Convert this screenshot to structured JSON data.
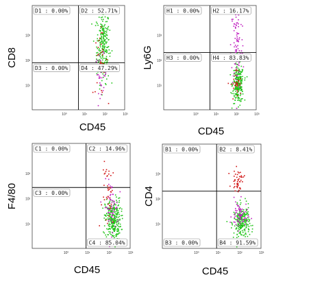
{
  "chart_data": [
    {
      "type": "scatter",
      "xlabel": "CD45",
      "ylabel": "CD8",
      "x_ticks": [
        "10⁰",
        "10¹",
        "10²",
        "10³"
      ],
      "y_ticks": [
        "10¹",
        "10²",
        "10³"
      ],
      "quadrants": [
        {
          "id": "D1",
          "text": "D1 : 0.00%"
        },
        {
          "id": "D2",
          "text": "D2 : 52.71%"
        },
        {
          "id": "D3",
          "text": "D3 : 0.00%"
        },
        {
          "id": "D4",
          "text": "D4 : 47.29%"
        }
      ],
      "gate_x": 0.5,
      "gate_y": 0.45,
      "clusters": [
        {
          "name": "green",
          "color": "#22c41a",
          "count": 260,
          "cx": 0.76,
          "cy": 0.62,
          "sx": 0.035,
          "sy": 0.18
        },
        {
          "name": "magenta",
          "color": "#c020c0",
          "count": 40,
          "cx": 0.74,
          "cy": 0.35,
          "sx": 0.03,
          "sy": 0.09
        },
        {
          "name": "red",
          "color": "#d01010",
          "count": 30,
          "cx": 0.73,
          "cy": 0.45,
          "sx": 0.04,
          "sy": 0.15
        }
      ]
    },
    {
      "type": "scatter",
      "xlabel": "CD45",
      "ylabel": "Ly6G",
      "x_ticks": [
        "10⁰",
        "10¹",
        "10²",
        "10³"
      ],
      "y_ticks": [
        "10¹",
        "10²",
        "10³"
      ],
      "quadrants": [
        {
          "id": "H1",
          "text": "H1 : 0.00%"
        },
        {
          "id": "H2",
          "text": "H2 : 16.17%"
        },
        {
          "id": "H3",
          "text": "H3 : 0.00%"
        },
        {
          "id": "H4",
          "text": "H4 : 83.83%"
        }
      ],
      "gate_x": 0.5,
      "gate_y": 0.55,
      "clusters": [
        {
          "name": "green",
          "color": "#22c41a",
          "count": 240,
          "cx": 0.8,
          "cy": 0.25,
          "sx": 0.03,
          "sy": 0.09
        },
        {
          "name": "magenta",
          "color": "#c020c0",
          "count": 90,
          "cx": 0.79,
          "cy": 0.62,
          "sx": 0.035,
          "sy": 0.22
        },
        {
          "name": "red",
          "color": "#d01010",
          "count": 30,
          "cx": 0.78,
          "cy": 0.24,
          "sx": 0.03,
          "sy": 0.08
        }
      ]
    },
    {
      "type": "scatter",
      "xlabel": "CD45",
      "ylabel": "F4/80",
      "x_ticks": [
        "10⁰",
        "10¹",
        "10²",
        "10³"
      ],
      "y_ticks": [
        "10¹",
        "10²",
        "10³"
      ],
      "quadrants": [
        {
          "id": "C1",
          "text": "C1 : 0.00%"
        },
        {
          "id": "C2",
          "text": "C2 : 14.96%"
        },
        {
          "id": "C3",
          "text": "C3 : 0.00%"
        },
        {
          "id": "C4",
          "text": "C4 : 85.04%"
        }
      ],
      "gate_x": 0.55,
      "gate_y": 0.58,
      "clusters": [
        {
          "name": "green",
          "color": "#22c41a",
          "count": 280,
          "cx": 0.82,
          "cy": 0.28,
          "sx": 0.04,
          "sy": 0.1
        },
        {
          "name": "magenta",
          "color": "#c020c0",
          "count": 60,
          "cx": 0.8,
          "cy": 0.4,
          "sx": 0.035,
          "sy": 0.12
        },
        {
          "name": "red",
          "color": "#d01010",
          "count": 40,
          "cx": 0.78,
          "cy": 0.5,
          "sx": 0.035,
          "sy": 0.16
        }
      ]
    },
    {
      "type": "scatter",
      "xlabel": "CD45",
      "ylabel": "CD4",
      "x_ticks": [
        "10⁰",
        "10¹",
        "10²",
        "10³"
      ],
      "y_ticks": [
        "10¹",
        "10²",
        "10³"
      ],
      "quadrants": [
        {
          "id": "B1",
          "text": "B1 : 0.00%"
        },
        {
          "id": "B2",
          "text": "B2 : 8.41%"
        },
        {
          "id": "B3",
          "text": "B3 : 0.00%"
        },
        {
          "id": "B4",
          "text": "B4 : 91.59%"
        }
      ],
      "gate_x": 0.55,
      "gate_y": 0.55,
      "clusters": [
        {
          "name": "green",
          "color": "#22c41a",
          "count": 240,
          "cx": 0.8,
          "cy": 0.25,
          "sx": 0.04,
          "sy": 0.08
        },
        {
          "name": "magenta",
          "color": "#c020c0",
          "count": 70,
          "cx": 0.78,
          "cy": 0.32,
          "sx": 0.04,
          "sy": 0.07
        },
        {
          "name": "red",
          "color": "#d01010",
          "count": 45,
          "cx": 0.76,
          "cy": 0.66,
          "sx": 0.03,
          "sy": 0.05
        }
      ]
    }
  ]
}
